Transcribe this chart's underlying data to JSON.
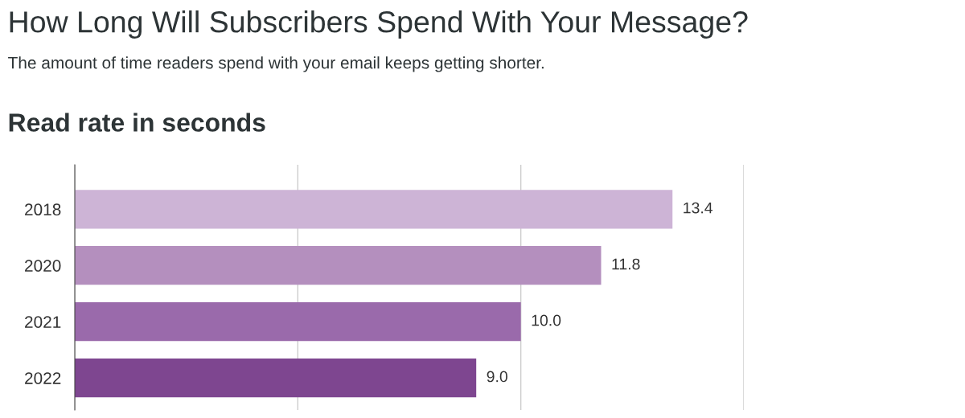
{
  "chart_data": {
    "type": "bar",
    "orientation": "horizontal",
    "title": "How Long Will Subscribers Spend With Your Message?",
    "subtitle": "The amount of time readers spend with your email keeps getting shorter.",
    "xlabel": "Read rate in seconds",
    "categories": [
      "2018",
      "2020",
      "2021",
      "2022"
    ],
    "values": [
      13.4,
      11.8,
      10.0,
      9.0
    ],
    "value_labels": [
      "13.4",
      "11.8",
      "10.0",
      "9.0"
    ],
    "colors": [
      "#cdb4d6",
      "#b48fbe",
      "#9a6aab",
      "#7e4690"
    ],
    "xlim": [
      0,
      15
    ],
    "xticks": [
      {
        "value": 0,
        "label": null
      },
      {
        "value": 5,
        "label": null
      },
      {
        "value": 10,
        "label": null
      },
      {
        "value": 15,
        "label": null
      }
    ],
    "grid": "x",
    "tick_labels": "y",
    "legend": false
  }
}
